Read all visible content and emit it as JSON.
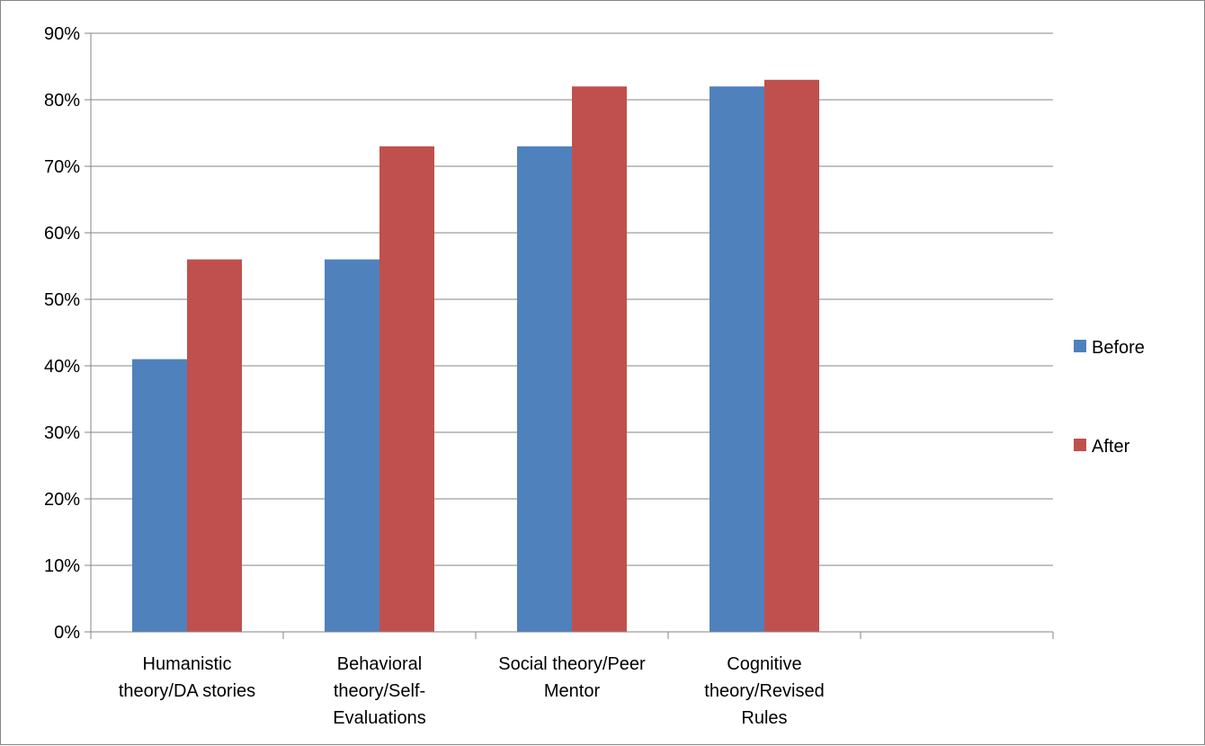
{
  "chart_data": {
    "type": "bar",
    "categories": [
      [
        "Humanistic",
        "theory/DA stories"
      ],
      [
        "Behavioral",
        "theory/Self-",
        "Evaluations"
      ],
      [
        "Social theory/Peer",
        "Mentor"
      ],
      [
        "Cognitive",
        "theory/Revised",
        "Rules"
      ],
      [
        ""
      ]
    ],
    "series": [
      {
        "name": "Before",
        "color": "#4F81BD",
        "values": [
          41,
          56,
          73,
          82,
          null
        ]
      },
      {
        "name": "After",
        "color": "#C0504D",
        "values": [
          56,
          73,
          82,
          83,
          null
        ]
      }
    ],
    "y_ticks": [
      "0%",
      "10%",
      "20%",
      "30%",
      "40%",
      "50%",
      "60%",
      "70%",
      "80%",
      "90%"
    ],
    "ylim": [
      0,
      90
    ],
    "y_unit": "%",
    "grid": true,
    "legend_position": "right"
  }
}
